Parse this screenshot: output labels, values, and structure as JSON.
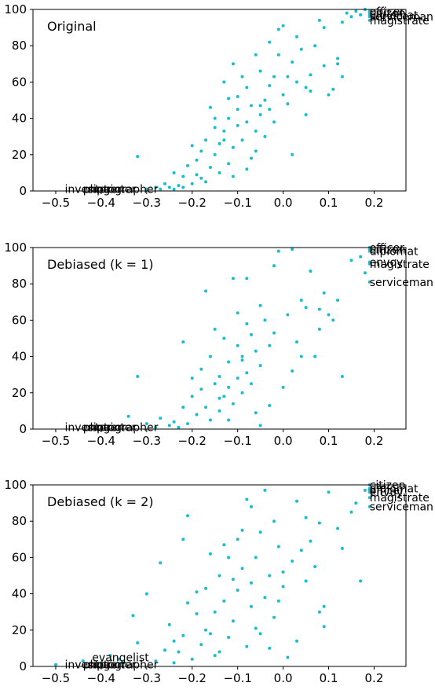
{
  "chart_data": [
    {
      "type": "scatter",
      "title": "Original",
      "xlim": [
        -0.55,
        0.27
      ],
      "ylim": [
        0,
        100
      ],
      "xticks": [
        "−0.5",
        "−0.4",
        "−0.3",
        "−0.2",
        "−0.1",
        "0.0",
        "0.1",
        "0.2"
      ],
      "yticks": [
        "0",
        "20",
        "40",
        "60",
        "80",
        "100"
      ],
      "color": "#17becf",
      "annotations": [
        {
          "text": "inventor",
          "x": -0.48,
          "y": 1
        },
        {
          "text": "photographer",
          "x": -0.44,
          "y": 1
        },
        {
          "text": "singer",
          "x": -0.43,
          "y": 1
        },
        {
          "text": "painter",
          "x": -0.41,
          "y": 1
        },
        {
          "text": "officer",
          "x": 0.19,
          "y": 99
        },
        {
          "text": "citizen",
          "x": 0.19,
          "y": 98
        },
        {
          "text": "diplomat",
          "x": 0.19,
          "y": 97
        },
        {
          "text": "serviceman",
          "x": 0.19,
          "y": 96
        },
        {
          "text": "magistrate",
          "x": 0.19,
          "y": 94
        }
      ],
      "points": [
        [
          0.19,
          99
        ],
        [
          0.19,
          98
        ],
        [
          0.19,
          97
        ],
        [
          0.19,
          96
        ],
        [
          0.19,
          94
        ],
        [
          0.18,
          100
        ],
        [
          0.17,
          97
        ],
        [
          0.16,
          99
        ],
        [
          0.15,
          96
        ],
        [
          0.14,
          98
        ],
        [
          0.13,
          93
        ],
        [
          0.12,
          73
        ],
        [
          0.12,
          70
        ],
        [
          0.13,
          63
        ],
        [
          0.11,
          56
        ],
        [
          0.1,
          53
        ],
        [
          0.09,
          90
        ],
        [
          0.08,
          94
        ],
        [
          0.07,
          80
        ],
        [
          0.06,
          64
        ],
        [
          0.05,
          57
        ],
        [
          0.04,
          78
        ],
        [
          0.03,
          85
        ],
        [
          0.03,
          60
        ],
        [
          0.02,
          71
        ],
        [
          0.01,
          63
        ],
        [
          0.0,
          91
        ],
        [
          0.0,
          53
        ],
        [
          -0.01,
          89
        ],
        [
          -0.02,
          63
        ],
        [
          -0.03,
          45
        ],
        [
          -0.03,
          58
        ],
        [
          -0.04,
          50
        ],
        [
          -0.05,
          42
        ],
        [
          -0.05,
          66
        ],
        [
          -0.06,
          75
        ],
        [
          -0.06,
          33
        ],
        [
          -0.07,
          47
        ],
        [
          -0.08,
          57
        ],
        [
          -0.08,
          38
        ],
        [
          -0.09,
          63
        ],
        [
          -0.09,
          28
        ],
        [
          -0.1,
          45
        ],
        [
          -0.1,
          36
        ],
        [
          -0.11,
          70
        ],
        [
          -0.11,
          24
        ],
        [
          -0.12,
          40
        ],
        [
          -0.12,
          15
        ],
        [
          -0.13,
          33
        ],
        [
          -0.13,
          60
        ],
        [
          -0.14,
          26
        ],
        [
          -0.14,
          10
        ],
        [
          -0.15,
          20
        ],
        [
          -0.15,
          35
        ],
        [
          -0.16,
          46
        ],
        [
          -0.16,
          13
        ],
        [
          -0.17,
          28
        ],
        [
          -0.18,
          7
        ],
        [
          -0.18,
          22
        ],
        [
          -0.19,
          17
        ],
        [
          -0.2,
          25
        ],
        [
          -0.2,
          4
        ],
        [
          -0.21,
          14
        ],
        [
          -0.22,
          8
        ],
        [
          -0.23,
          3
        ],
        [
          -0.24,
          10
        ],
        [
          -0.25,
          2
        ],
        [
          -0.26,
          4
        ],
        [
          -0.27,
          1
        ],
        [
          -0.28,
          2
        ],
        [
          -0.3,
          1
        ],
        [
          -0.32,
          19
        ],
        [
          -0.1,
          52
        ],
        [
          -0.04,
          30
        ],
        [
          -0.06,
          22
        ],
        [
          -0.02,
          38
        ],
        [
          0.01,
          48
        ],
        [
          -0.01,
          75
        ],
        [
          -0.07,
          18
        ],
        [
          -0.12,
          51
        ],
        [
          -0.17,
          5
        ],
        [
          -0.22,
          2
        ],
        [
          0.02,
          20
        ],
        [
          0.05,
          42
        ],
        [
          -0.08,
          12
        ],
        [
          -0.03,
          82
        ],
        [
          0.09,
          69
        ],
        [
          -0.15,
          40
        ],
        [
          -0.13,
          28
        ],
        [
          -0.05,
          47
        ],
        [
          0.06,
          55
        ],
        [
          -0.11,
          8
        ],
        [
          -0.19,
          9
        ],
        [
          -0.24,
          1
        ]
      ]
    },
    {
      "type": "scatter",
      "title": "Debiased (k = 1)",
      "xlim": [
        -0.55,
        0.27
      ],
      "ylim": [
        0,
        100
      ],
      "xticks": [
        "−0.5",
        "−0.4",
        "−0.3",
        "−0.2",
        "−0.1",
        "0.0",
        "0.1",
        "0.2"
      ],
      "yticks": [
        "0",
        "20",
        "40",
        "60",
        "80",
        "100"
      ],
      "color": "#17becf",
      "annotations": [
        {
          "text": "inventor",
          "x": -0.48,
          "y": 1
        },
        {
          "text": "photographer",
          "x": -0.44,
          "y": 1
        },
        {
          "text": "singer",
          "x": -0.43,
          "y": 1
        },
        {
          "text": "painter",
          "x": -0.41,
          "y": 1
        },
        {
          "text": "officer",
          "x": 0.19,
          "y": 100
        },
        {
          "text": "citizen",
          "x": 0.19,
          "y": 99
        },
        {
          "text": "diplomat",
          "x": 0.19,
          "y": 98
        },
        {
          "text": "envoy",
          "x": 0.19,
          "y": 92
        },
        {
          "text": "magistrate",
          "x": 0.19,
          "y": 91
        },
        {
          "text": "serviceman",
          "x": 0.19,
          "y": 81
        }
      ],
      "points": [
        [
          0.19,
          100
        ],
        [
          0.19,
          99
        ],
        [
          0.19,
          98
        ],
        [
          0.19,
          92
        ],
        [
          0.19,
          91
        ],
        [
          0.19,
          81
        ],
        [
          0.18,
          86
        ],
        [
          0.17,
          95
        ],
        [
          0.15,
          93
        ],
        [
          0.13,
          29
        ],
        [
          0.12,
          71
        ],
        [
          0.11,
          60
        ],
        [
          0.1,
          63
        ],
        [
          0.09,
          75
        ],
        [
          0.08,
          55
        ],
        [
          0.07,
          40
        ],
        [
          0.06,
          87
        ],
        [
          0.05,
          67
        ],
        [
          0.04,
          71
        ],
        [
          0.03,
          48
        ],
        [
          0.02,
          99
        ],
        [
          0.01,
          63
        ],
        [
          -0.01,
          98
        ],
        [
          -0.02,
          53
        ],
        [
          -0.03,
          46
        ],
        [
          -0.04,
          60
        ],
        [
          -0.05,
          35
        ],
        [
          -0.05,
          68
        ],
        [
          -0.06,
          43
        ],
        [
          -0.07,
          52
        ],
        [
          -0.08,
          31
        ],
        [
          -0.08,
          58
        ],
        [
          -0.09,
          38
        ],
        [
          -0.09,
          20
        ],
        [
          -0.1,
          28
        ],
        [
          -0.1,
          46
        ],
        [
          -0.11,
          83
        ],
        [
          -0.11,
          14
        ],
        [
          -0.12,
          37
        ],
        [
          -0.12,
          23
        ],
        [
          -0.13,
          18
        ],
        [
          -0.13,
          50
        ],
        [
          -0.14,
          10
        ],
        [
          -0.14,
          29
        ],
        [
          -0.15,
          25
        ],
        [
          -0.16,
          40
        ],
        [
          -0.16,
          5
        ],
        [
          -0.17,
          12
        ],
        [
          -0.17,
          76
        ],
        [
          -0.18,
          33
        ],
        [
          -0.19,
          8
        ],
        [
          -0.2,
          18
        ],
        [
          -0.21,
          3
        ],
        [
          -0.22,
          48
        ],
        [
          -0.22,
          12
        ],
        [
          -0.23,
          1
        ],
        [
          -0.24,
          4
        ],
        [
          -0.25,
          2
        ],
        [
          -0.27,
          6
        ],
        [
          -0.28,
          1
        ],
        [
          -0.3,
          3
        ],
        [
          -0.32,
          29
        ],
        [
          -0.34,
          7
        ],
        [
          -0.08,
          83
        ],
        [
          -0.03,
          13
        ],
        [
          0.0,
          23
        ],
        [
          -0.06,
          9
        ],
        [
          -0.1,
          64
        ],
        [
          0.04,
          40
        ],
        [
          -0.15,
          55
        ],
        [
          -0.12,
          5
        ],
        [
          -0.2,
          28
        ],
        [
          0.08,
          66
        ],
        [
          -0.05,
          2
        ],
        [
          -0.02,
          90
        ],
        [
          -0.09,
          40
        ],
        [
          -0.14,
          17
        ],
        [
          -0.18,
          22
        ],
        [
          -0.07,
          25
        ],
        [
          0.02,
          32
        ]
      ]
    },
    {
      "type": "scatter",
      "title": "Debiased (k = 2)",
      "xlim": [
        -0.55,
        0.27
      ],
      "ylim": [
        0,
        100
      ],
      "xticks": [
        "−0.5",
        "−0.4",
        "−0.3",
        "−0.2",
        "−0.1",
        "0.0",
        "0.1",
        "0.2"
      ],
      "yticks": [
        "0",
        "20",
        "40",
        "60",
        "80",
        "100"
      ],
      "color": "#17becf",
      "annotations": [
        {
          "text": "evangelist",
          "x": -0.42,
          "y": 5
        },
        {
          "text": "inventor",
          "x": -0.48,
          "y": 1
        },
        {
          "text": "photographer",
          "x": -0.44,
          "y": 1
        },
        {
          "text": "singer",
          "x": -0.43,
          "y": 1
        },
        {
          "text": "painter",
          "x": -0.41,
          "y": 1
        },
        {
          "text": "citizen",
          "x": 0.19,
          "y": 100
        },
        {
          "text": "diplomat",
          "x": 0.19,
          "y": 98
        },
        {
          "text": "officer",
          "x": 0.19,
          "y": 97
        },
        {
          "text": "envoy",
          "x": 0.19,
          "y": 96
        },
        {
          "text": "magistrate",
          "x": 0.19,
          "y": 93
        },
        {
          "text": "serviceman",
          "x": 0.19,
          "y": 88
        }
      ],
      "points": [
        [
          0.19,
          100
        ],
        [
          0.19,
          98
        ],
        [
          0.19,
          97
        ],
        [
          0.19,
          96
        ],
        [
          0.19,
          93
        ],
        [
          0.19,
          88
        ],
        [
          0.18,
          97
        ],
        [
          0.17,
          47
        ],
        [
          0.16,
          90
        ],
        [
          0.15,
          85
        ],
        [
          0.13,
          65
        ],
        [
          0.12,
          76
        ],
        [
          0.1,
          96
        ],
        [
          0.09,
          33
        ],
        [
          0.09,
          22
        ],
        [
          0.08,
          79
        ],
        [
          0.07,
          55
        ],
        [
          0.06,
          69
        ],
        [
          0.05,
          47
        ],
        [
          0.04,
          64
        ],
        [
          0.03,
          91
        ],
        [
          0.02,
          58
        ],
        [
          0.01,
          5
        ],
        [
          0.0,
          44
        ],
        [
          -0.01,
          66
        ],
        [
          -0.02,
          27
        ],
        [
          -0.02,
          80
        ],
        [
          -0.03,
          50
        ],
        [
          -0.04,
          38
        ],
        [
          -0.05,
          74
        ],
        [
          -0.05,
          18
        ],
        [
          -0.06,
          60
        ],
        [
          -0.07,
          46
        ],
        [
          -0.07,
          33
        ],
        [
          -0.08,
          92
        ],
        [
          -0.08,
          11
        ],
        [
          -0.09,
          54
        ],
        [
          -0.1,
          42
        ],
        [
          -0.1,
          70
        ],
        [
          -0.11,
          25
        ],
        [
          -0.12,
          60
        ],
        [
          -0.12,
          16
        ],
        [
          -0.13,
          36
        ],
        [
          -0.14,
          50
        ],
        [
          -0.14,
          8
        ],
        [
          -0.15,
          30
        ],
        [
          -0.16,
          62
        ],
        [
          -0.17,
          20
        ],
        [
          -0.17,
          43
        ],
        [
          -0.18,
          12
        ],
        [
          -0.19,
          29
        ],
        [
          -0.2,
          4
        ],
        [
          -0.21,
          83
        ],
        [
          -0.21,
          35
        ],
        [
          -0.22,
          70
        ],
        [
          -0.22,
          17
        ],
        [
          -0.23,
          8
        ],
        [
          -0.24,
          2
        ],
        [
          -0.25,
          23
        ],
        [
          -0.26,
          9
        ],
        [
          -0.27,
          57
        ],
        [
          -0.28,
          3
        ],
        [
          -0.3,
          40
        ],
        [
          -0.32,
          13
        ],
        [
          -0.33,
          28
        ],
        [
          -0.35,
          2
        ],
        [
          -0.36,
          4
        ],
        [
          -0.37,
          1
        ],
        [
          -0.38,
          6
        ],
        [
          -0.4,
          2
        ],
        [
          -0.44,
          3
        ],
        [
          -0.5,
          1
        ],
        [
          -0.04,
          97
        ],
        [
          -0.09,
          75
        ],
        [
          0.03,
          14
        ],
        [
          -0.15,
          6
        ],
        [
          -0.11,
          48
        ],
        [
          -0.06,
          21
        ],
        [
          -0.01,
          36
        ],
        [
          0.05,
          82
        ],
        [
          -0.19,
          41
        ],
        [
          -0.13,
          67
        ],
        [
          -0.03,
          10
        ],
        [
          0.08,
          30
        ],
        [
          -0.16,
          18
        ],
        [
          -0.07,
          88
        ],
        [
          0.0,
          52
        ],
        [
          -0.24,
          14
        ]
      ]
    }
  ]
}
